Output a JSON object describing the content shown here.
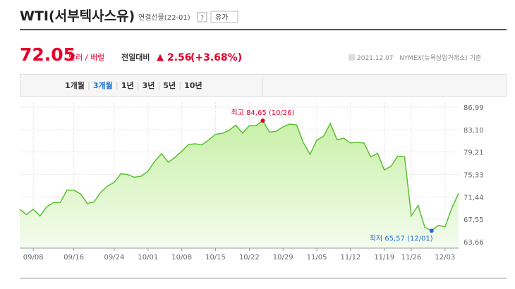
{
  "header": {
    "title": "WTI(서부텍사스유)",
    "subtitle": "연결선물(22-01)",
    "help": "?",
    "button": "유가"
  },
  "quote": {
    "price": "72.05",
    "unit": "달러 / 배럴",
    "change_label": "전일대비",
    "change_arrow": "▲",
    "change": "2.56",
    "change_pct": "(+3.68%)",
    "date": "2021.12.07",
    "source": "NYMEX(뉴욕상업거래소) 기준"
  },
  "tabs": [
    "1개월",
    "3개월",
    "1년",
    "3년",
    "5년",
    "10년"
  ],
  "chart_data": {
    "type": "line",
    "categories": [
      null,
      null,
      "09/08",
      null,
      null,
      null,
      null,
      null,
      "09/16",
      null,
      null,
      null,
      null,
      null,
      "09/24",
      null,
      null,
      null,
      null,
      "10/01",
      null,
      null,
      null,
      null,
      "10/08",
      null,
      null,
      null,
      null,
      "10/15",
      null,
      null,
      null,
      null,
      "10/22",
      null,
      null,
      null,
      null,
      "10/29",
      null,
      null,
      null,
      null,
      "11/05",
      null,
      null,
      null,
      null,
      "11/12",
      null,
      null,
      null,
      null,
      "11/19",
      null,
      null,
      null,
      "11/26",
      null,
      null,
      null,
      null,
      "12/03",
      null,
      null
    ],
    "series": [
      {
        "color": "#5bbf2f",
        "values": [
          69.29,
          68.35,
          69.3,
          68.14,
          69.72,
          70.45,
          70.46,
          72.61,
          72.61,
          71.97,
          70.29,
          70.56,
          72.23,
          73.3,
          73.98,
          75.45,
          75.29,
          74.83,
          75.03,
          75.88,
          77.62,
          78.93,
          77.43,
          78.3,
          79.35,
          80.52,
          80.64,
          80.44,
          81.31,
          82.28,
          82.44,
          82.96,
          83.87,
          82.5,
          83.76,
          83.76,
          84.65,
          82.66,
          82.81,
          83.57,
          84.05,
          83.91,
          80.86,
          78.81,
          81.27,
          81.93,
          84.15,
          81.34,
          81.59,
          80.79,
          80.88,
          80.76,
          78.36,
          79.01,
          76.1,
          76.75,
          78.5,
          78.39,
          68.15,
          69.95,
          66.18,
          65.57,
          66.5,
          66.26,
          69.49,
          72.05
        ]
      }
    ],
    "ylim": [
      62.56,
      87.84
    ],
    "yticks": [
      {
        "value": 86.99,
        "label": "86,99"
      },
      {
        "value": 83.1,
        "label": "83,10"
      },
      {
        "value": 79.21,
        "label": "79,21"
      },
      {
        "value": 75.33,
        "label": "75,33"
      },
      {
        "value": 71.44,
        "label": "71,44"
      },
      {
        "value": 67.55,
        "label": "67,55"
      },
      {
        "value": 63.66,
        "label": "63,66"
      }
    ],
    "grid": true,
    "annotations": [
      {
        "text": "최고 84,65 (10/26)",
        "index": 36,
        "color": "#e4002b"
      },
      {
        "text": "최저 65,57 (12/01)",
        "index": 61,
        "color": "#1b6fd8"
      }
    ]
  }
}
